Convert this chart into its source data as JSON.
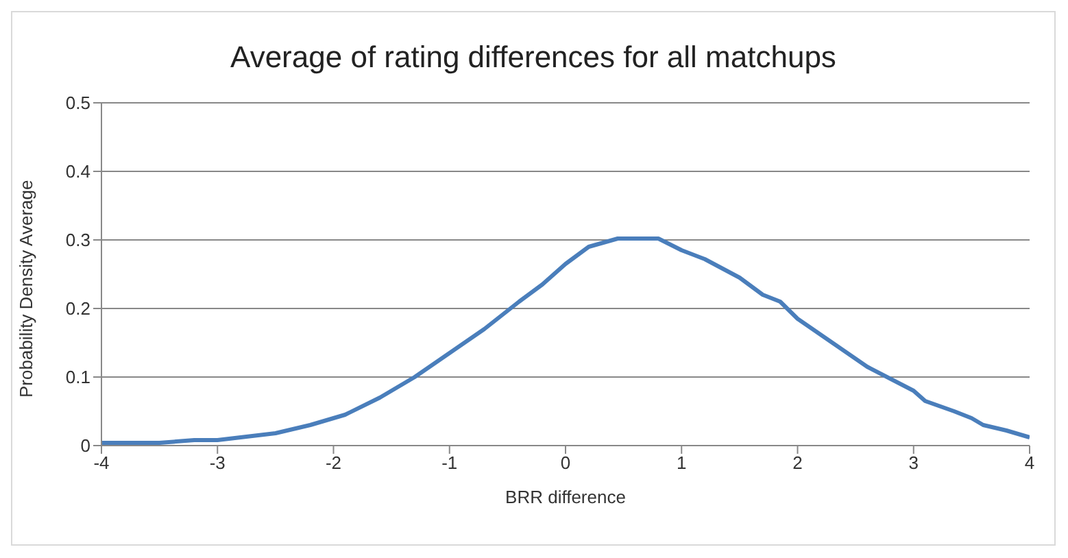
{
  "chart_data": {
    "type": "line",
    "title": "Average of rating differences for all matchups",
    "xlabel": "BRR difference",
    "ylabel": "Probability Density Average",
    "x": [
      -4,
      -3.5,
      -3.2,
      -3,
      -2.8,
      -2.5,
      -2.2,
      -1.9,
      -1.6,
      -1.3,
      -1,
      -0.7,
      -0.4,
      -0.2,
      0,
      0.2,
      0.45,
      0.8,
      1,
      1.2,
      1.5,
      1.7,
      1.85,
      2,
      2.3,
      2.6,
      3,
      3.1,
      3.35,
      3.5,
      3.6,
      3.8,
      4
    ],
    "series": [
      {
        "color": "#4a7ebb",
        "values": [
          0.004,
          0.004,
          0.008,
          0.008,
          0.012,
          0.018,
          0.03,
          0.045,
          0.07,
          0.1,
          0.135,
          0.17,
          0.21,
          0.235,
          0.265,
          0.29,
          0.302,
          0.302,
          0.285,
          0.272,
          0.245,
          0.22,
          0.21,
          0.185,
          0.15,
          0.115,
          0.08,
          0.065,
          0.05,
          0.04,
          0.03,
          0.022,
          0.012
        ]
      }
    ],
    "xlim": [
      -4,
      4
    ],
    "xticks": [
      -4,
      -3,
      -2,
      -1,
      0,
      1,
      2,
      3,
      4
    ],
    "ylim": [
      0,
      0.5
    ],
    "yticks": [
      0,
      0.1,
      0.2,
      0.3,
      0.4,
      0.5
    ],
    "grid": "y",
    "legend": false,
    "marker": "none",
    "line_style": "solid"
  }
}
